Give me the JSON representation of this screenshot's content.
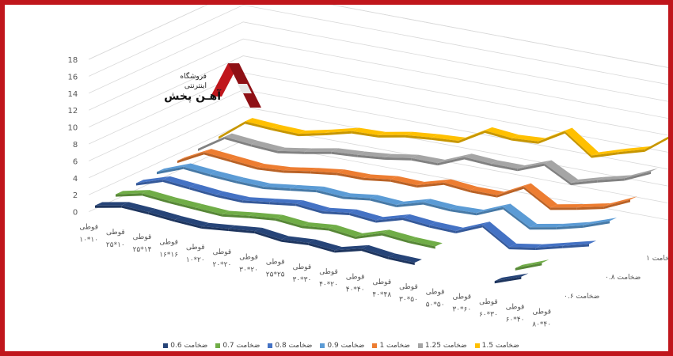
{
  "logo": {
    "line1": "فروشگاه",
    "line2": "اینترنتی",
    "line3": "آهـن پخش"
  },
  "chart_data": {
    "type": "line",
    "view": "3d",
    "ylim": [
      0,
      18
    ],
    "yticks": [
      0,
      2,
      4,
      6,
      8,
      10,
      12,
      14,
      16,
      18
    ],
    "grid": true,
    "legend_position": "bottom",
    "categories": [
      {
        "line1": "قوطی",
        "line2": "۱۰*۱۰"
      },
      {
        "line1": "قوطی",
        "line2": "۲۵*۱۰"
      },
      {
        "line1": "قوطی",
        "line2": "۲۵*۱۴"
      },
      {
        "line1": "قوطی",
        "line2": "۱۶*۱۶"
      },
      {
        "line1": "قوطی",
        "line2": "۱۰*۲۰"
      },
      {
        "line1": "قوطی",
        "line2": "۲۰*۲۰"
      },
      {
        "line1": "قوطی",
        "line2": "۳۰*۲۰"
      },
      {
        "line1": "قوطی",
        "line2": "۲۵*۲۵"
      },
      {
        "line1": "قوطی",
        "line2": "۳۰*۳۰"
      },
      {
        "line1": "قوطی",
        "line2": "۴۰*۲۰"
      },
      {
        "line1": "قوطی",
        "line2": "۴۰*۴۰"
      },
      {
        "line1": "قوطی",
        "line2": "۴۰*۴۸"
      },
      {
        "line1": "قوطی",
        "line2": "۳۰*۵۰"
      },
      {
        "line1": "قوطی",
        "line2": "۵۰*۵۰"
      },
      {
        "line1": "قوطی",
        "line2": "۳۰*۶۰"
      },
      {
        "line1": "قوطی",
        "line2": "۶۰*۳۰"
      },
      {
        "line1": "قوطی",
        "line2": "۶۰*۴۰"
      },
      {
        "line1": "قوطی",
        "line2": "۸۰*۴۰"
      }
    ],
    "depth_labels": [
      "ضخامت ۰.۶",
      "ضخامت ۰.۸",
      "ضخامت ۱",
      "ضخامت ۱.۵"
    ],
    "series": [
      {
        "name": "ضخامت 0.6",
        "color": "#264478",
        "values": [
          0.4,
          1.0,
          0.8,
          0.5,
          0.3,
          0.6,
          0.9,
          0.5,
          0.7,
          0.4,
          1.2,
          0.8,
          0.7,
          null,
          null,
          0.3,
          1.4,
          null
        ]
      },
      {
        "name": "ضخامت 0.7",
        "color": "#70ad47",
        "values": [
          0.6,
          1.3,
          1.0,
          0.8,
          0.6,
          1.0,
          1.3,
          1.0,
          1.3,
          0.9,
          1.9,
          1.6,
          1.5,
          null,
          null,
          0.7,
          1.9,
          null
        ]
      },
      {
        "name": "ضخامت 0.8",
        "color": "#4472c4",
        "values": [
          0.8,
          1.8,
          1.5,
          1.2,
          1.1,
          1.5,
          1.9,
          1.6,
          2.0,
          1.7,
          2.6,
          2.3,
          2.2,
          3.5,
          1.5,
          2.0,
          2.8,
          3.6
        ]
      },
      {
        "name": "ضخامت 0.9",
        "color": "#5b9bd5",
        "values": [
          1.0,
          2.2,
          1.9,
          1.7,
          1.6,
          2.0,
          2.4,
          2.2,
          2.6,
          2.4,
          3.3,
          3.1,
          3.2,
          4.5,
          2.7,
          3.3,
          4.1,
          5.2
        ]
      },
      {
        "name": "ضخامت 1",
        "color": "#ed7d31",
        "values": [
          1.2,
          2.8,
          2.5,
          2.2,
          2.4,
          2.9,
          3.3,
          3.3,
          3.7,
          3.6,
          4.5,
          4.2,
          4.2,
          5.8,
          3.9,
          4.5,
          5.2,
          6.6
        ]
      },
      {
        "name": "ضخامت 1.25",
        "color": "#a5a5a5",
        "values": [
          1.5,
          3.5,
          3.2,
          3.0,
          3.5,
          4.1,
          4.3,
          4.6,
          5.1,
          5.1,
          6.4,
          6.2,
          6.2,
          7.4,
          5.7,
          6.6,
          7.4,
          8.8
        ]
      },
      {
        "name": "ضخامت 1.5",
        "color": "#ffc000",
        "values": [
          1.8,
          4.2,
          4.0,
          3.9,
          4.6,
          5.4,
          5.5,
          6.1,
          6.4,
          6.6,
          8.4,
          8.1,
          8.3,
          10.1,
          7.8,
          8.8,
          9.7,
          12.0
        ]
      }
    ]
  }
}
